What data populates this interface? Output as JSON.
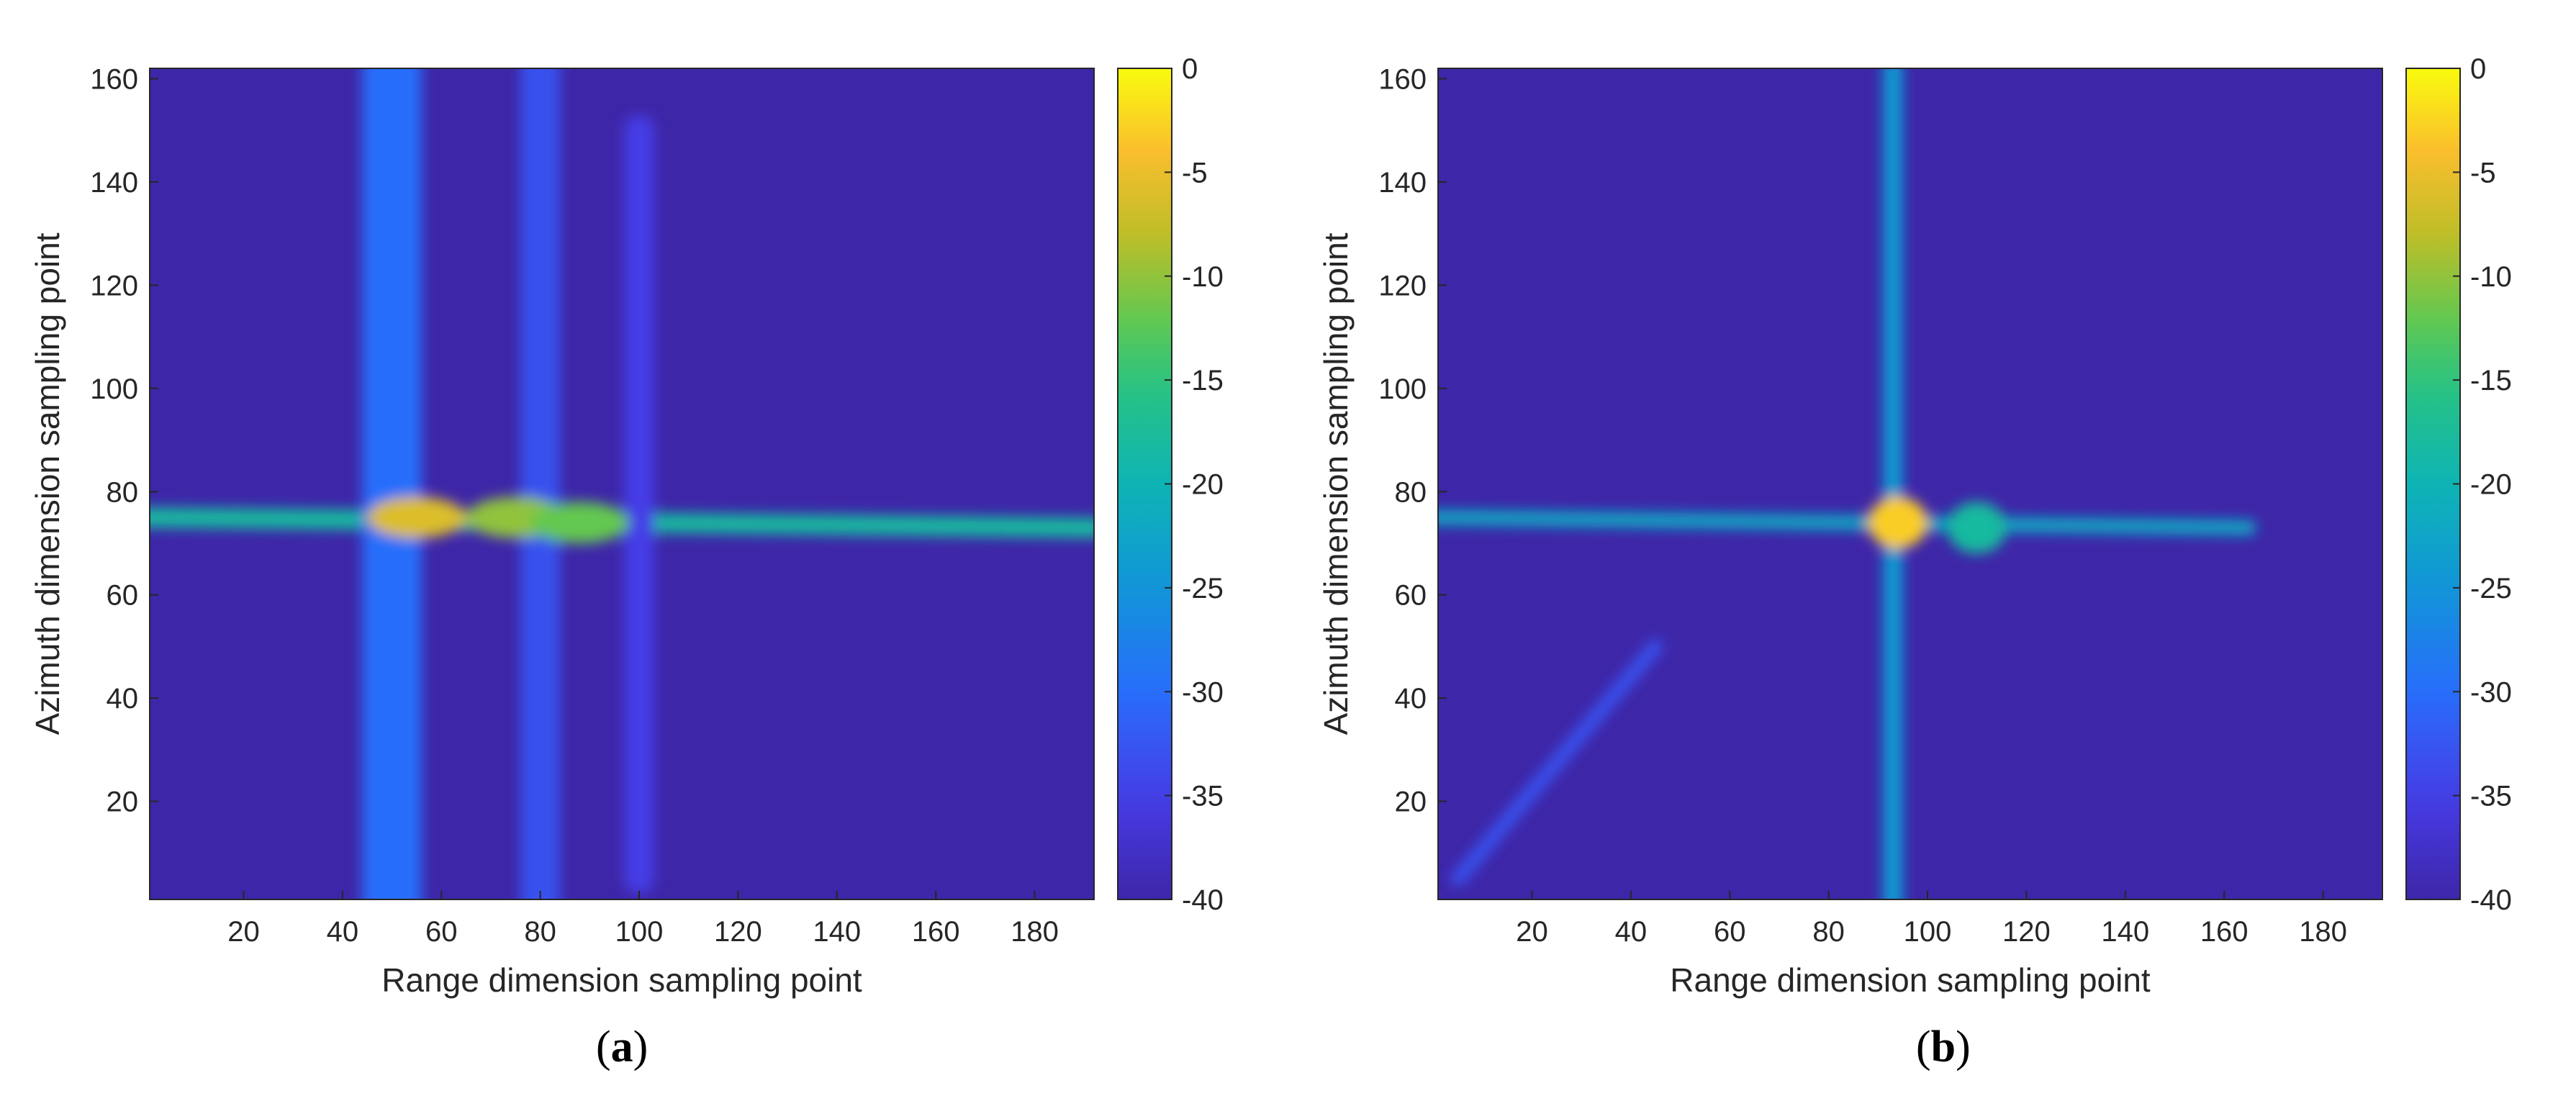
{
  "chart_data": [
    {
      "type": "heatmap",
      "panel_label": "a",
      "xlabel": "Range dimension sampling point",
      "ylabel": "Azimuth dimension sampling point",
      "xlim": [
        1,
        192
      ],
      "ylim": [
        1,
        162
      ],
      "xticks": [
        20,
        40,
        60,
        80,
        100,
        120,
        140,
        160,
        180
      ],
      "yticks": [
        20,
        40,
        60,
        80,
        100,
        120,
        140,
        160
      ],
      "colorbar": {
        "min": -40,
        "max": 0,
        "ticks": [
          0,
          -5,
          -10,
          -15,
          -20,
          -25,
          -30,
          -35,
          -40
        ],
        "colormap": "parula"
      },
      "background_db": -40,
      "features": [
        {
          "kind": "ridge",
          "x": [
            0,
            192
          ],
          "y": [
            75,
            73
          ],
          "width": 4,
          "db": -18
        },
        {
          "kind": "ridge",
          "x": [
            50,
            50
          ],
          "y": [
            0,
            162
          ],
          "width": 12,
          "db": -30
        },
        {
          "kind": "ridge",
          "x": [
            80,
            80
          ],
          "y": [
            0,
            162
          ],
          "width": 8,
          "db": -33
        },
        {
          "kind": "ridge",
          "x": [
            100,
            100
          ],
          "y": [
            5,
            150
          ],
          "width": 6,
          "db": -35
        },
        {
          "kind": "blob",
          "x": 55,
          "y": 75,
          "db": -6
        },
        {
          "kind": "blob",
          "x": 75,
          "y": 75,
          "db": -10
        },
        {
          "kind": "blob",
          "x": 88,
          "y": 74,
          "db": -12
        }
      ]
    },
    {
      "type": "heatmap",
      "panel_label": "b",
      "xlabel": "Range dimension sampling point",
      "ylabel": "Azimuth dimension sampling point",
      "xlim": [
        1,
        192
      ],
      "ylim": [
        1,
        162
      ],
      "xticks": [
        20,
        40,
        60,
        80,
        100,
        120,
        140,
        160,
        180
      ],
      "yticks": [
        20,
        40,
        60,
        80,
        100,
        120,
        140,
        160
      ],
      "colorbar": {
        "min": -40,
        "max": 0,
        "ticks": [
          0,
          -5,
          -10,
          -15,
          -20,
          -25,
          -30,
          -35,
          -40
        ],
        "colormap": "parula"
      },
      "background_db": -40,
      "features": [
        {
          "kind": "ridge",
          "x": [
            0,
            165
          ],
          "y": [
            75,
            73
          ],
          "width": 3,
          "db": -22
        },
        {
          "kind": "ridge",
          "x": [
            93,
            93
          ],
          "y": [
            0,
            162
          ],
          "width": 4,
          "db": -24
        },
        {
          "kind": "ridge",
          "x": [
            5,
            45
          ],
          "y": [
            5,
            50
          ],
          "width": 3,
          "db": -33
        },
        {
          "kind": "blob",
          "x": 94,
          "y": 74,
          "db": -3
        },
        {
          "kind": "blob",
          "x": 110,
          "y": 73,
          "db": -18
        }
      ]
    }
  ]
}
